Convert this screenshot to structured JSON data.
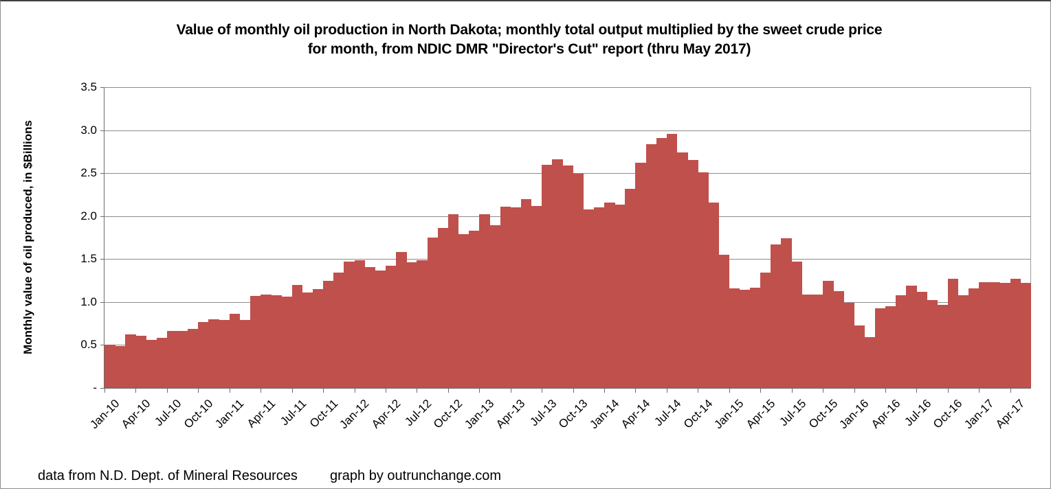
{
  "chart_data": {
    "type": "bar",
    "title_line1": "Value of monthly oil production in North Dakota; monthly total output multiplied by the sweet crude price",
    "title_line2": "for month, from NDIC DMR \"Director's Cut\" report  (thru  May 2017)",
    "ylabel": "Monthly value of oil produced, in $Billions",
    "xlabel": "",
    "ylim": [
      0,
      3.5
    ],
    "grid": "horizontal",
    "legend": "none",
    "y_ticks": [
      {
        "value": 3.5,
        "label": "3.5"
      },
      {
        "value": 3.0,
        "label": "3.0"
      },
      {
        "value": 2.5,
        "label": "2.5"
      },
      {
        "value": 2.0,
        "label": "2.0"
      },
      {
        "value": 1.5,
        "label": "1.5"
      },
      {
        "value": 1.0,
        "label": "1.0"
      },
      {
        "value": 0.5,
        "label": "0.5"
      },
      {
        "value": 0.0,
        "label": "-"
      }
    ],
    "x_label_every_n_months": 3,
    "bar_color": "#BF504C",
    "gridline_color": "#8C8C8C",
    "axis_color": "#6B6B6B",
    "months": [
      "Jan-10",
      "Feb-10",
      "Mar-10",
      "Apr-10",
      "May-10",
      "Jun-10",
      "Jul-10",
      "Aug-10",
      "Sep-10",
      "Oct-10",
      "Nov-10",
      "Dec-10",
      "Jan-11",
      "Feb-11",
      "Mar-11",
      "Apr-11",
      "May-11",
      "Jun-11",
      "Jul-11",
      "Aug-11",
      "Sep-11",
      "Oct-11",
      "Nov-11",
      "Dec-11",
      "Jan-12",
      "Feb-12",
      "Mar-12",
      "Apr-12",
      "May-12",
      "Jun-12",
      "Jul-12",
      "Aug-12",
      "Sep-12",
      "Oct-12",
      "Nov-12",
      "Dec-12",
      "Jan-13",
      "Feb-13",
      "Mar-13",
      "Apr-13",
      "May-13",
      "Jun-13",
      "Jul-13",
      "Aug-13",
      "Sep-13",
      "Oct-13",
      "Nov-13",
      "Dec-13",
      "Jan-14",
      "Feb-14",
      "Mar-14",
      "Apr-14",
      "May-14",
      "Jun-14",
      "Jul-14",
      "Aug-14",
      "Sep-14",
      "Oct-14",
      "Nov-14",
      "Dec-14",
      "Jan-15",
      "Feb-15",
      "Mar-15",
      "Apr-15",
      "May-15",
      "Jun-15",
      "Jul-15",
      "Aug-15",
      "Sep-15",
      "Oct-15",
      "Nov-15",
      "Dec-15",
      "Jan-16",
      "Feb-16",
      "Mar-16",
      "Apr-16",
      "May-16",
      "Jun-16",
      "Jul-16",
      "Aug-16",
      "Sep-16",
      "Oct-16",
      "Nov-16",
      "Dec-16",
      "Jan-17",
      "Feb-17",
      "Mar-17",
      "Apr-17",
      "May-17"
    ],
    "values": [
      0.5,
      0.49,
      0.62,
      0.61,
      0.56,
      0.58,
      0.66,
      0.66,
      0.69,
      0.77,
      0.8,
      0.79,
      0.86,
      0.79,
      1.07,
      1.09,
      1.08,
      1.06,
      1.2,
      1.11,
      1.15,
      1.25,
      1.34,
      1.47,
      1.49,
      1.41,
      1.37,
      1.42,
      1.58,
      1.46,
      1.49,
      1.75,
      1.86,
      2.02,
      1.79,
      1.83,
      2.02,
      1.89,
      2.11,
      2.1,
      2.2,
      2.12,
      2.6,
      2.66,
      2.59,
      2.49,
      2.08,
      2.1,
      2.16,
      2.13,
      2.32,
      2.62,
      2.84,
      2.91,
      2.96,
      2.74,
      2.65,
      2.51,
      2.16,
      1.55,
      1.16,
      1.14,
      1.17,
      1.34,
      1.67,
      1.74,
      1.47,
      1.09,
      1.09,
      1.25,
      1.13,
      0.99,
      0.73,
      0.59,
      0.93,
      0.95,
      1.08,
      1.19,
      1.12,
      1.02,
      0.97,
      1.27,
      1.08,
      1.16,
      1.23,
      1.23,
      1.22,
      1.27,
      1.22
    ]
  },
  "footer": {
    "source": "data from N.D. Dept. of Mineral Resources",
    "credit": "graph by outrunchange.com"
  }
}
